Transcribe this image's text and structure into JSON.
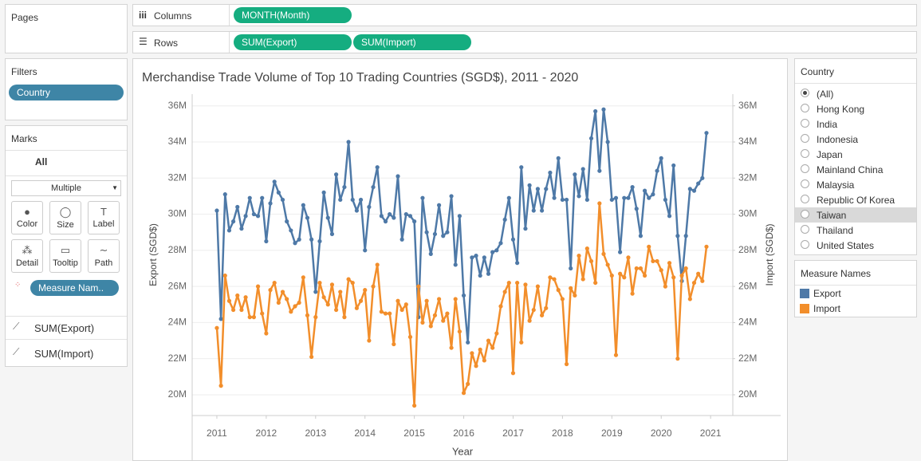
{
  "shelves": {
    "pages": "Pages",
    "columns": {
      "label": "Columns",
      "pills": [
        "MONTH(Month)"
      ]
    },
    "rows": {
      "label": "Rows",
      "pills": [
        "SUM(Export)",
        "SUM(Import)"
      ]
    }
  },
  "filters": {
    "title": "Filters",
    "pills": [
      "Country"
    ]
  },
  "marks": {
    "title": "Marks",
    "scope": "All",
    "type": "Multiple",
    "buttons": [
      "Color",
      "Size",
      "Label",
      "Detail",
      "Tooltip",
      "Path"
    ],
    "pill": "Measure Nam..",
    "measures": [
      "SUM(Export)",
      "SUM(Import)"
    ]
  },
  "country_filter": {
    "title": "Country",
    "options": [
      "(All)",
      "Hong Kong",
      "India",
      "Indonesia",
      "Japan",
      "Mainland China",
      "Malaysia",
      "Republic Of Korea",
      "Taiwan",
      "Thailand",
      "United States"
    ]
  },
  "legend": {
    "title": "Measure Names"
  },
  "chart_data": {
    "type": "line",
    "title": "Merchandise Trade Volume of Top 10 Trading Countries (SGD$), 2011 - 2020",
    "x_label": "Year",
    "y_label": "Export (SGD$)",
    "y2_label": "Import (SGD$)",
    "x": [
      "2011-01",
      "2011-02",
      "2011-03",
      "2011-04",
      "2011-05",
      "2011-06",
      "2011-07",
      "2011-08",
      "2011-09",
      "2011-10",
      "2011-11",
      "2011-12",
      "2012-01",
      "2012-02",
      "2012-03",
      "2012-04",
      "2012-05",
      "2012-06",
      "2012-07",
      "2012-08",
      "2012-09",
      "2012-10",
      "2012-11",
      "2012-12",
      "2013-01",
      "2013-02",
      "2013-03",
      "2013-04",
      "2013-05",
      "2013-06",
      "2013-07",
      "2013-08",
      "2013-09",
      "2013-10",
      "2013-11",
      "2013-12",
      "2014-01",
      "2014-02",
      "2014-03",
      "2014-04",
      "2014-05",
      "2014-06",
      "2014-07",
      "2014-08",
      "2014-09",
      "2014-10",
      "2014-11",
      "2014-12",
      "2015-01",
      "2015-02",
      "2015-03",
      "2015-04",
      "2015-05",
      "2015-06",
      "2015-07",
      "2015-08",
      "2015-09",
      "2015-10",
      "2015-11",
      "2015-12",
      "2016-01",
      "2016-02",
      "2016-03",
      "2016-04",
      "2016-05",
      "2016-06",
      "2016-07",
      "2016-08",
      "2016-09",
      "2016-10",
      "2016-11",
      "2016-12",
      "2017-01",
      "2017-02",
      "2017-03",
      "2017-04",
      "2017-05",
      "2017-06",
      "2017-07",
      "2017-08",
      "2017-09",
      "2017-10",
      "2017-11",
      "2017-12",
      "2018-01",
      "2018-02",
      "2018-03",
      "2018-04",
      "2018-05",
      "2018-06",
      "2018-07",
      "2018-08",
      "2018-09",
      "2018-10",
      "2018-11",
      "2018-12",
      "2019-01",
      "2019-02",
      "2019-03",
      "2019-04",
      "2019-05",
      "2019-06",
      "2019-07",
      "2019-08",
      "2019-09",
      "2019-10",
      "2019-11",
      "2019-12",
      "2020-01",
      "2020-02",
      "2020-03",
      "2020-04",
      "2020-05",
      "2020-06",
      "2020-07",
      "2020-08",
      "2020-09",
      "2020-10",
      "2020-11",
      "2020-12"
    ],
    "series": [
      {
        "name": "Export",
        "color": "#4e79a7",
        "values": [
          30200000,
          24200000,
          31100000,
          29100000,
          29600000,
          30400000,
          29200000,
          29900000,
          30900000,
          30000000,
          29900000,
          30900000,
          28500000,
          30600000,
          31800000,
          31200000,
          30800000,
          29600000,
          29100000,
          28400000,
          28600000,
          30500000,
          29800000,
          28600000,
          25700000,
          28500000,
          31200000,
          29800000,
          28900000,
          32200000,
          30800000,
          31500000,
          34000000,
          30800000,
          30200000,
          30800000,
          28000000,
          30400000,
          31500000,
          32600000,
          29900000,
          29600000,
          30000000,
          29800000,
          32100000,
          28600000,
          30000000,
          29900000,
          29600000,
          24300000,
          30900000,
          29000000,
          27800000,
          28900000,
          30500000,
          28800000,
          29000000,
          31000000,
          27200000,
          29900000,
          25500000,
          22900000,
          27600000,
          27700000,
          26600000,
          27600000,
          26700000,
          27900000,
          28000000,
          28400000,
          29700000,
          30900000,
          28600000,
          27300000,
          32600000,
          29200000,
          31600000,
          30200000,
          31400000,
          30200000,
          31400000,
          32300000,
          30900000,
          33100000,
          30800000,
          30800000,
          27000000,
          32200000,
          31000000,
          32500000,
          30800000,
          34200000,
          35700000,
          32400000,
          35800000,
          34000000,
          30800000,
          30900000,
          27900000,
          30900000,
          30900000,
          31500000,
          30300000,
          28800000,
          31300000,
          30900000,
          31100000,
          32400000,
          33100000,
          30800000,
          29900000,
          32700000,
          28800000,
          26300000,
          28800000,
          31400000,
          31300000,
          31700000,
          32000000,
          34500000
        ]
      },
      {
        "name": "Import",
        "color": "#f28e2b",
        "axis": "y2",
        "values": [
          23700000,
          20500000,
          26600000,
          25200000,
          24700000,
          25500000,
          24700000,
          25400000,
          24300000,
          24300000,
          26000000,
          24500000,
          23400000,
          25800000,
          26200000,
          25100000,
          25700000,
          25300000,
          24600000,
          24900000,
          25100000,
          26500000,
          24400000,
          22100000,
          24300000,
          26200000,
          25400000,
          25000000,
          26100000,
          24700000,
          25700000,
          24300000,
          26400000,
          26200000,
          24800000,
          25200000,
          25800000,
          23000000,
          26000000,
          27200000,
          24600000,
          24500000,
          24500000,
          22800000,
          25200000,
          24700000,
          25000000,
          23200000,
          19400000,
          26000000,
          24000000,
          25200000,
          23800000,
          24400000,
          25300000,
          24100000,
          24500000,
          22600000,
          25300000,
          23500000,
          20100000,
          20600000,
          22300000,
          21600000,
          22500000,
          21900000,
          23000000,
          22600000,
          23400000,
          24900000,
          25700000,
          26200000,
          21200000,
          26200000,
          22900000,
          26100000,
          24100000,
          24700000,
          26000000,
          24400000,
          24800000,
          26500000,
          26400000,
          25800000,
          25300000,
          21700000,
          25900000,
          25500000,
          27700000,
          26400000,
          28100000,
          27400000,
          26200000,
          30600000,
          27800000,
          27200000,
          26600000,
          22200000,
          26700000,
          26500000,
          27600000,
          25600000,
          27000000,
          27000000,
          26600000,
          28200000,
          27400000,
          27400000,
          26900000,
          26000000,
          27300000,
          26500000,
          22000000,
          26600000,
          27000000,
          25300000,
          26200000,
          26700000,
          26300000,
          28200000
        ]
      }
    ],
    "xlim": [
      2010.5,
      2021.45
    ],
    "xticks": [
      2011,
      2012,
      2013,
      2014,
      2015,
      2016,
      2017,
      2018,
      2019,
      2020,
      2021
    ],
    "ylim": [
      18850000,
      36650000
    ],
    "yticks": [
      {
        "value": 20000000,
        "label": "20M"
      },
      {
        "value": 22000000,
        "label": "22M"
      },
      {
        "value": 24000000,
        "label": "24M"
      },
      {
        "value": 26000000,
        "label": "26M"
      },
      {
        "value": 28000000,
        "label": "28M"
      },
      {
        "value": 30000000,
        "label": "30M"
      },
      {
        "value": 32000000,
        "label": "32M"
      },
      {
        "value": 34000000,
        "label": "34M"
      },
      {
        "value": 36000000,
        "label": "36M"
      }
    ],
    "y2lim": [
      18850000,
      36650000
    ],
    "y2ticks": [
      {
        "value": 20000000,
        "label": "20M"
      },
      {
        "value": 22000000,
        "label": "22M"
      },
      {
        "value": 24000000,
        "label": "24M"
      },
      {
        "value": 26000000,
        "label": "26M"
      },
      {
        "value": 28000000,
        "label": "28M"
      },
      {
        "value": 30000000,
        "label": "30M"
      },
      {
        "value": 32000000,
        "label": "32M"
      },
      {
        "value": 34000000,
        "label": "34M"
      },
      {
        "value": 36000000,
        "label": "36M"
      }
    ],
    "grid": true
  }
}
